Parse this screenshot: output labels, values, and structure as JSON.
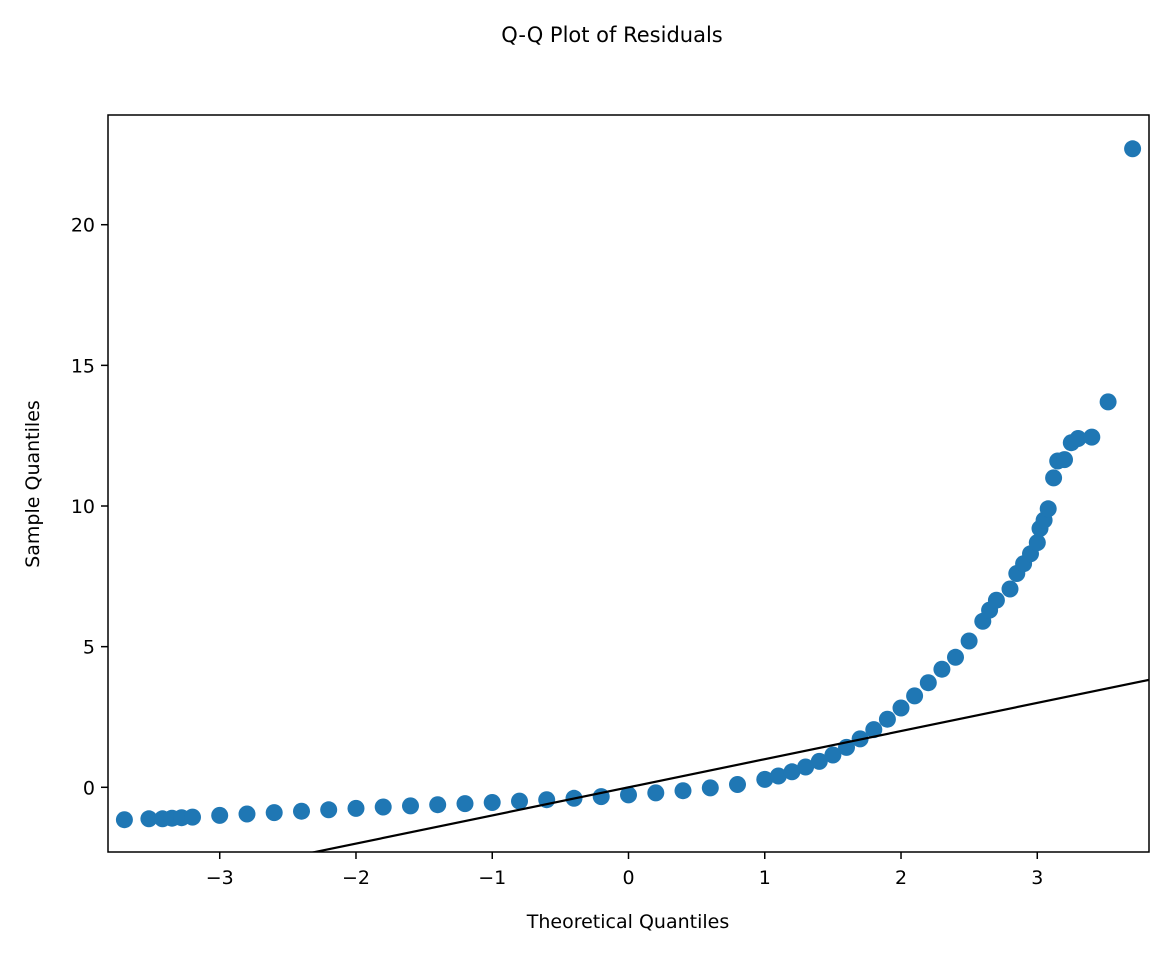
{
  "chart_data": {
    "type": "scatter",
    "title": "Q-Q Plot of Residuals",
    "xlabel": "Theoretical Quantiles",
    "ylabel": "Sample Quantiles",
    "xlim": [
      -3.82,
      3.82
    ],
    "ylim": [
      -2.3,
      23.9
    ],
    "xticks": [
      -3,
      -2,
      -1,
      0,
      1,
      2,
      3
    ],
    "xtick_labels": [
      "−3",
      "−2",
      "−1",
      "0",
      "1",
      "2",
      "3"
    ],
    "yticks": [
      0,
      5,
      10,
      15,
      20
    ],
    "ytick_labels": [
      "0",
      "5",
      "10",
      "15",
      "20"
    ],
    "grid": false,
    "colors": {
      "points": "#1f77b4",
      "line": "#000000"
    },
    "reference_line": {
      "slope": 1.0,
      "intercept": 0.0
    },
    "series": [
      {
        "x": [
          -3.7,
          -3.52,
          -3.42,
          -3.35,
          -3.28,
          -3.2,
          -3.0,
          -2.8,
          -2.6,
          -2.4,
          -2.2,
          -2.0,
          -1.8,
          -1.6,
          -1.4,
          -1.2,
          -1.0,
          -0.8,
          -0.6,
          -0.4,
          -0.2,
          0.0,
          0.2,
          0.4,
          0.6,
          0.8,
          1.0,
          1.1,
          1.2,
          1.3,
          1.4,
          1.5,
          1.6,
          1.7,
          1.8,
          1.9,
          2.0,
          2.1,
          2.2,
          2.3,
          2.4,
          2.5,
          2.6,
          2.65,
          2.7,
          2.8,
          2.85,
          2.9,
          2.95,
          3.0,
          3.02,
          3.05,
          3.08,
          3.12,
          3.15,
          3.2,
          3.25,
          3.3,
          3.4,
          3.52,
          3.7
        ],
        "y": [
          -1.15,
          -1.12,
          -1.12,
          -1.1,
          -1.08,
          -1.06,
          -1.0,
          -0.95,
          -0.9,
          -0.85,
          -0.8,
          -0.75,
          -0.7,
          -0.66,
          -0.62,
          -0.58,
          -0.54,
          -0.49,
          -0.44,
          -0.39,
          -0.33,
          -0.27,
          -0.2,
          -0.12,
          -0.02,
          0.1,
          0.28,
          0.4,
          0.55,
          0.72,
          0.92,
          1.15,
          1.42,
          1.72,
          2.05,
          2.42,
          2.82,
          3.25,
          3.72,
          4.2,
          4.62,
          5.2,
          5.9,
          6.3,
          6.65,
          7.05,
          7.6,
          7.95,
          8.3,
          8.7,
          9.2,
          9.5,
          9.9,
          11.0,
          11.6,
          11.65,
          12.25,
          12.4,
          12.45,
          13.7,
          22.7
        ]
      }
    ]
  }
}
